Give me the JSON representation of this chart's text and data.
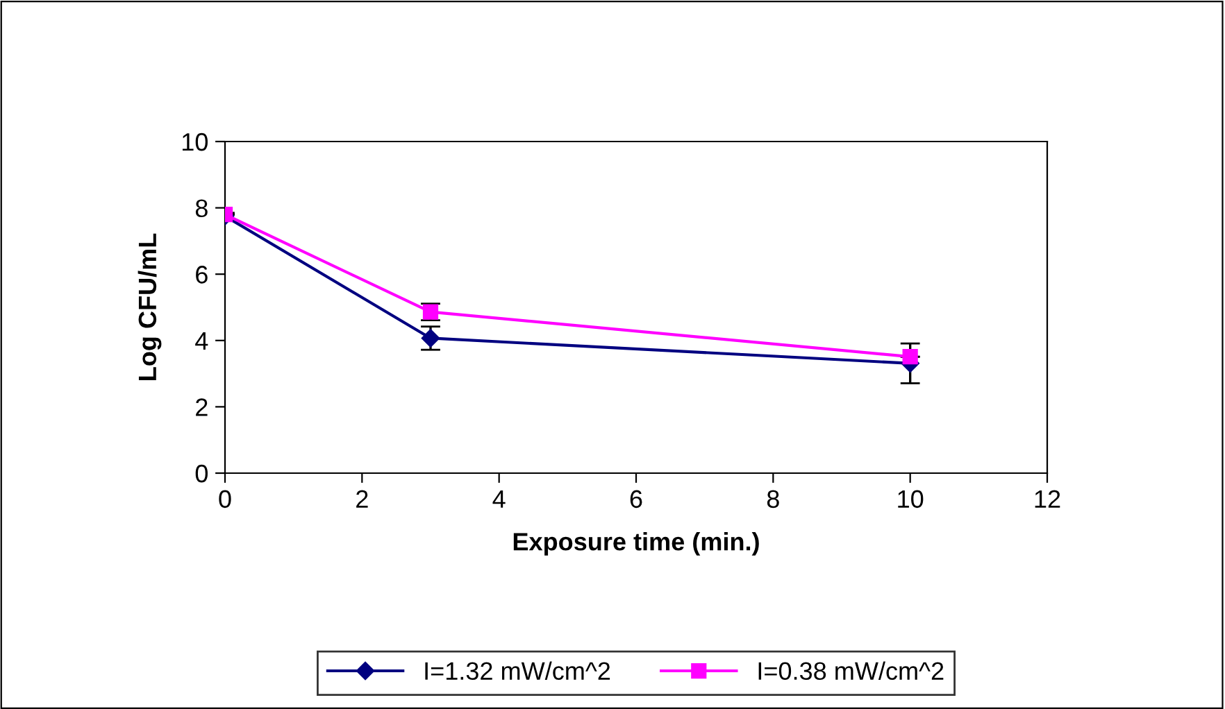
{
  "chart_data": {
    "type": "line",
    "xlabel": "Exposure time (min.)",
    "ylabel": "Log CFU/mL",
    "xlim": [
      0,
      12
    ],
    "xticks": [
      0,
      2,
      4,
      6,
      8,
      10,
      12
    ],
    "ylim": [
      0,
      10
    ],
    "yticks": [
      0,
      2,
      4,
      6,
      8,
      10
    ],
    "grid": false,
    "legend": "bottom",
    "series": [
      {
        "name": "I=1.32 mW/cm^2",
        "color": "#000080",
        "marker": "diamond",
        "x": [
          0,
          3,
          10
        ],
        "values": [
          7.75,
          4.07,
          3.31
        ],
        "errors": [
          0.1,
          0.35,
          0.6
        ]
      },
      {
        "name": "I=0.38 mW/cm^2",
        "color": "#ff00ff",
        "marker": "square",
        "x": [
          0,
          3,
          10
        ],
        "values": [
          7.8,
          4.86,
          3.51
        ],
        "errors": [
          null,
          0.25,
          null
        ]
      }
    ]
  }
}
